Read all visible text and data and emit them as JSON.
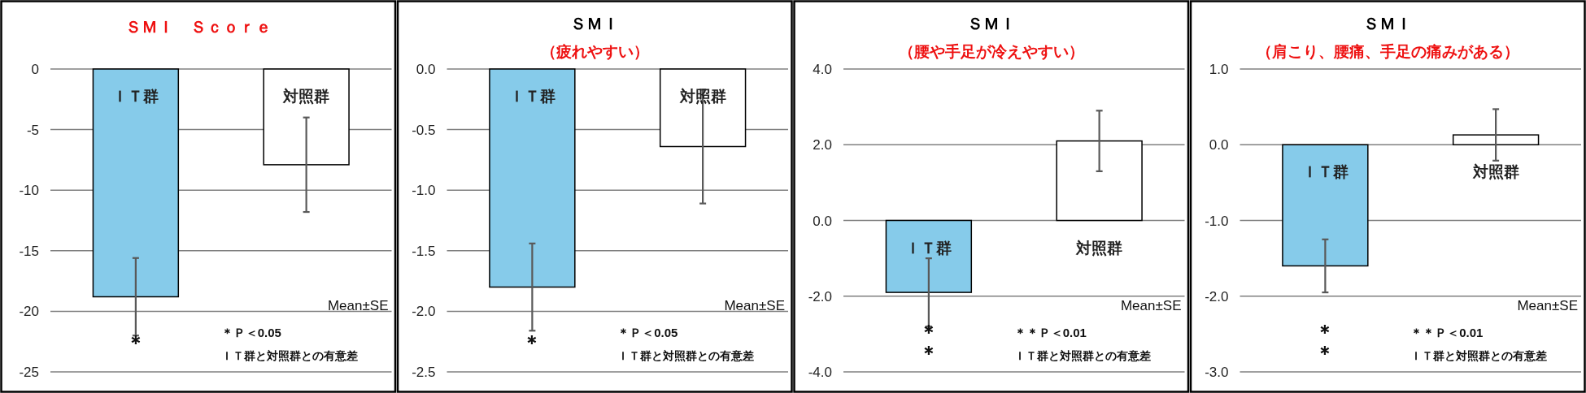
{
  "chart_data": [
    {
      "type": "bar",
      "title": "ＳＭＩ　Ｓｃｏｒｅ",
      "categories": [
        "ＩＴ群",
        "対照群"
      ],
      "values": [
        -18.8,
        -7.9
      ],
      "colors": [
        "#86cbea",
        "#ffffff"
      ],
      "errors": [
        3.2,
        3.9
      ],
      "ylim": [
        -25,
        0
      ],
      "yticks": [
        0,
        -5,
        -10,
        -15,
        -20,
        -25
      ],
      "grid": "y",
      "annotations": [
        "＊",
        "Mean±SE",
        "＊Ｐ＜0.05",
        "ＩＴ群と対照群との有意差"
      ]
    },
    {
      "type": "bar",
      "title": "ＳＭＩ",
      "subtitle": "（疲れやすい）",
      "categories": [
        "ＩＴ群",
        "対照群"
      ],
      "values": [
        -1.8,
        -0.64
      ],
      "colors": [
        "#86cbea",
        "#ffffff"
      ],
      "errors": [
        0.36,
        0.47
      ],
      "ylim": [
        -2.5,
        0
      ],
      "yticks": [
        {
          "value": 0,
          "label": "0.0"
        },
        -0.5,
        {
          "value": -1,
          "label": "-1.0"
        },
        -1.5,
        {
          "value": -2,
          "label": "-2.0"
        },
        -2.5
      ],
      "grid": "y",
      "annotations": [
        "＊",
        "Mean±SE",
        "＊Ｐ＜0.05",
        "ＩＴ群と対照群との有意差"
      ]
    },
    {
      "type": "bar",
      "title": "ＳＭＩ",
      "subtitle": "（腰や手足が冷えやすい）",
      "categories": [
        "ＩＴ群",
        "対照群"
      ],
      "values": [
        -1.9,
        2.1
      ],
      "colors": [
        "#86cbea",
        "#ffffff"
      ],
      "errors": [
        0.9,
        0.8
      ],
      "ylim": [
        -4,
        4
      ],
      "yticks": [
        {
          "value": 4,
          "label": "4.0"
        },
        {
          "value": 2,
          "label": "2.0"
        },
        {
          "value": 0,
          "label": "0.0"
        },
        {
          "value": -2,
          "label": "-2.0"
        },
        {
          "value": -4,
          "label": "-4.0"
        }
      ],
      "grid": "y",
      "annotations": [
        "＊＊",
        "Mean±SE",
        "＊＊Ｐ＜0.01",
        "ＩＴ群と対照群との有意差"
      ]
    },
    {
      "type": "bar",
      "title": "ＳＭＩ",
      "subtitle": "（肩こり、腰痛、手足の痛みがある）",
      "categories": [
        "ＩＴ群",
        "対照群"
      ],
      "values": [
        -1.6,
        0.13
      ],
      "colors": [
        "#86cbea",
        "#ffffff"
      ],
      "errors": [
        0.35,
        0.34
      ],
      "ylim": [
        -3,
        1
      ],
      "yticks": [
        {
          "value": 1,
          "label": "1.0"
        },
        {
          "value": 0,
          "label": "0.0"
        },
        {
          "value": -1,
          "label": "-1.0"
        },
        {
          "value": -2,
          "label": "-2.0"
        },
        {
          "value": -3,
          "label": "-3.0"
        }
      ],
      "grid": "y",
      "annotations": [
        "＊＊",
        "Mean±SE",
        "＊＊Ｐ＜0.01",
        "ＩＴ群と対照群との有意差"
      ]
    }
  ]
}
